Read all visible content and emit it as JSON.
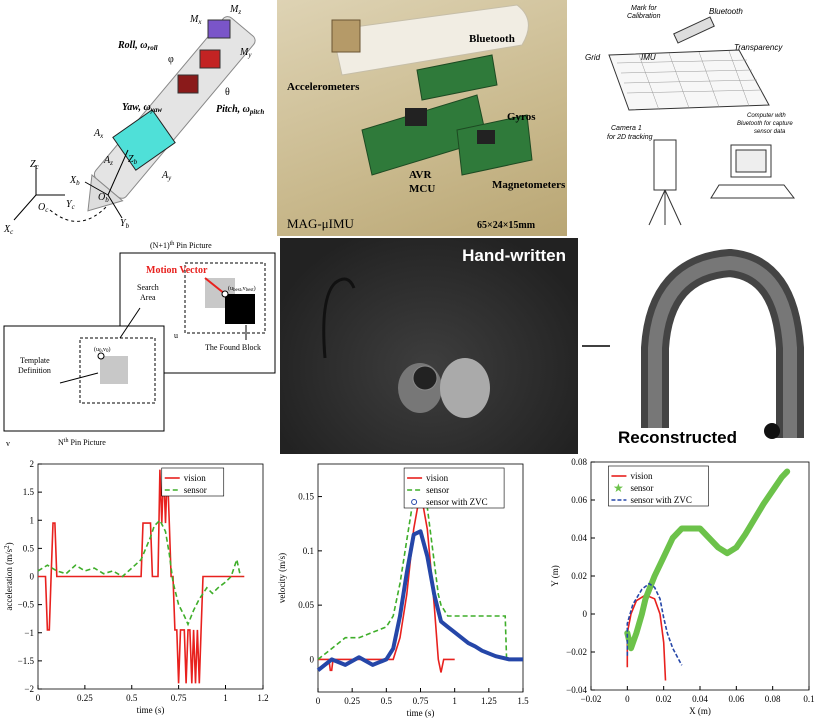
{
  "pen_diagram": {
    "labels": {
      "mz": "M",
      "mz_sub": "z",
      "roll": "Roll, ω",
      "roll_sub": "roll",
      "my": "M",
      "my_sub": "y",
      "mx": "M",
      "mx_sub": "x",
      "psi": "φ",
      "yaw": "Yaw, ω",
      "yaw_sub": "yaw",
      "theta": "θ",
      "pitch": "Pitch, ω",
      "pitch_sub": "pitch",
      "ax": "A",
      "ax_sub": "x",
      "az": "A",
      "az_sub": "z",
      "ay": "A",
      "ay_sub": "y",
      "zb": "Z",
      "zb_sub": "b",
      "xb": "X",
      "xb_sub": "b",
      "ob": "O",
      "ob_sub": "b",
      "yb": "Y",
      "yb_sub": "b",
      "zc": "Z",
      "zc_sub": "c",
      "oc": "O",
      "oc_sub": "c",
      "yc": "Y",
      "yc_sub": "c",
      "xc": "X",
      "xc_sub": "c"
    }
  },
  "hardware_photo": {
    "labels": {
      "bluetooth": "Bluetooth",
      "accelerometers": "Accelerometers",
      "gyros": "Gyros",
      "avr": "AVR",
      "mcu": "MCU",
      "magnetometers": "Magnetometers",
      "name": "MAG-μIMU",
      "size": "65×24×15mm"
    }
  },
  "setup_diagram": {
    "labels": {
      "mark": "Mark for",
      "mark2": "Calibration",
      "bluetooth": "Bluetooth",
      "grid": "Grid",
      "imu": "IMU",
      "transparency": "Transparency",
      "camera": "Camera 1",
      "camera2": "for 2D tracking",
      "computer": "Computer with",
      "computer2": "Bluetooth for capture",
      "computer3": "sensor data"
    }
  },
  "block_matching": {
    "labels": {
      "top_title": "(N+1)",
      "top_sup": "th",
      "top_rest": " Pin Picture",
      "motion_vector": "Motion Vector",
      "search_area": "Search",
      "search_area2": "Area",
      "u": "u",
      "template": "Template",
      "template2": "Definition",
      "found": "The Found Block",
      "v": "v",
      "bottom_title": "N",
      "bottom_sup": "th",
      "bottom_rest": " Pin Picture",
      "uv": "(u",
      "uv_rest": ",v",
      "uv_end": ")",
      "uv_sub": "0",
      "uv1": "(u",
      "uv1_mid": ",v",
      "uv1_end": ")",
      "uv1_sub": "best",
      "uv1_sub2": "best"
    }
  },
  "handwritten": {
    "label": "Hand-written"
  },
  "reconstructed": {
    "label": "Reconstructed"
  },
  "chart_data": [
    {
      "type": "line",
      "xlabel": "time (s)",
      "ylabel": "acceleration (m/s",
      "ylabel_sup": "2",
      "ylabel_end": ")",
      "xlim": [
        0,
        1.2
      ],
      "ylim": [
        -2,
        2
      ],
      "xticks": [
        "0",
        "0.25",
        "0.5",
        "0.75",
        "1",
        "1.2"
      ],
      "xtick_values": [
        0,
        0.25,
        0.5,
        0.75,
        1,
        1.2
      ],
      "yticks": [
        "−2",
        "−1.5",
        "−1",
        "−0.5",
        "0",
        "0.5",
        "1",
        "1.5",
        "2"
      ],
      "ytick_values": [
        -2,
        -1.5,
        -1,
        -0.5,
        0,
        0.5,
        1,
        1.5,
        2
      ],
      "legend": [
        "vision",
        "sensor"
      ],
      "series": [
        {
          "name": "vision",
          "color": "#e8211e",
          "dash": "none",
          "x": [
            0,
            0.04,
            0.05,
            0.06,
            0.07,
            0.08,
            0.09,
            0.1,
            0.11,
            0.55,
            0.56,
            0.6,
            0.61,
            0.64,
            0.65,
            0.66,
            0.67,
            0.68,
            0.69,
            0.7,
            0.71,
            0.72,
            0.73,
            0.74,
            0.75,
            0.76,
            0.77,
            0.78,
            0.79,
            0.8,
            0.81,
            0.82,
            0.83,
            0.84,
            0.85,
            0.86,
            0.87,
            0.88,
            0.89,
            0.9,
            0.91,
            0.95,
            0.96,
            1.1
          ],
          "y": [
            0,
            0,
            -0.95,
            -0.95,
            0,
            0.95,
            0.95,
            0,
            0,
            0,
            0.95,
            0.95,
            0,
            0,
            1.9,
            0.95,
            1.9,
            0.95,
            1.9,
            0.95,
            0,
            0,
            -0.95,
            -0.95,
            -1.9,
            -0.95,
            -0.95,
            -0.95,
            -1.9,
            -0.95,
            -0.95,
            -1.9,
            -0.95,
            -1.9,
            -0.95,
            -1.9,
            -0.95,
            0,
            0,
            0,
            0,
            0,
            0,
            0
          ]
        },
        {
          "name": "sensor",
          "color": "#3fae2a",
          "dash": "5,3",
          "x": [
            0,
            0.05,
            0.1,
            0.15,
            0.2,
            0.25,
            0.3,
            0.35,
            0.4,
            0.45,
            0.5,
            0.55,
            0.6,
            0.62,
            0.65,
            0.68,
            0.7,
            0.72,
            0.75,
            0.78,
            0.8,
            0.83,
            0.86,
            0.9,
            0.93,
            0.96,
            1.0,
            1.03,
            1.06,
            1.08
          ],
          "y": [
            0.1,
            0.2,
            0.1,
            0.05,
            0.2,
            0.1,
            0.15,
            0.05,
            0.1,
            0.0,
            0.15,
            0.3,
            0.7,
            0.9,
            1.0,
            0.8,
            0.4,
            -0.1,
            -0.5,
            -0.7,
            -0.85,
            -0.6,
            -0.4,
            -0.2,
            -0.3,
            -0.2,
            -0.1,
            0.0,
            0.3,
            0.0
          ]
        }
      ]
    },
    {
      "type": "line",
      "xlabel": "time (s)",
      "ylabel": "velocity (m/s)",
      "xlim": [
        0,
        1.5
      ],
      "ylim": [
        -0.03,
        0.18
      ],
      "xticks": [
        "0",
        "0.25",
        "0.5",
        "0.75",
        "1",
        "1.25",
        "1.5"
      ],
      "xtick_values": [
        0,
        0.25,
        0.5,
        0.75,
        1,
        1.25,
        1.5
      ],
      "yticks": [
        "0",
        "0.05",
        "0.1",
        "0.15"
      ],
      "ytick_values": [
        0,
        0.05,
        0.1,
        0.15
      ],
      "legend": [
        "vision",
        "sensor",
        "sensor with ZVC"
      ],
      "series": [
        {
          "name": "vision",
          "color": "#e8211e",
          "dash": "none",
          "x": [
            0,
            0.08,
            0.09,
            0.1,
            0.11,
            0.55,
            0.6,
            0.65,
            0.7,
            0.75,
            0.8,
            0.85,
            0.88,
            0.9,
            0.92,
            0.95,
            1.0
          ],
          "y": [
            0,
            0,
            -0.01,
            -0.01,
            0,
            0,
            0.02,
            0.06,
            0.12,
            0.155,
            0.12,
            0.05,
            0.0,
            -0.012,
            0.0,
            0,
            0
          ]
        },
        {
          "name": "sensor",
          "color": "#3fae2a",
          "dash": "5,3",
          "x": [
            0,
            0.1,
            0.2,
            0.3,
            0.4,
            0.5,
            0.55,
            0.6,
            0.65,
            0.7,
            0.75,
            0.8,
            0.85,
            0.88,
            0.9,
            0.95,
            1.05,
            1.07,
            1.37,
            1.38
          ],
          "y": [
            0,
            0.01,
            0.02,
            0.02,
            0.025,
            0.03,
            0.04,
            0.07,
            0.11,
            0.15,
            0.165,
            0.14,
            0.09,
            0.06,
            0.05,
            0.04,
            0.04,
            0.04,
            0.04,
            0
          ]
        },
        {
          "name": "sensor with ZVC",
          "color": "#2546a8",
          "dash": "none",
          "x": [
            0,
            0.1,
            0.2,
            0.3,
            0.4,
            0.5,
            0.55,
            0.6,
            0.65,
            0.7,
            0.75,
            0.8,
            0.85,
            0.9,
            0.95,
            1.0,
            1.05,
            1.1,
            1.15,
            1.2,
            1.3,
            1.4,
            1.5
          ],
          "y": [
            -0.01,
            0,
            -0.005,
            0.002,
            -0.005,
            0,
            0.01,
            0.04,
            0.08,
            0.115,
            0.118,
            0.095,
            0.06,
            0.035,
            0.03,
            0.025,
            0.02,
            0.015,
            0.012,
            0.008,
            0.003,
            0.0,
            0.0
          ]
        }
      ]
    },
    {
      "type": "line",
      "xlabel": "X (m)",
      "ylabel": "Y (m)",
      "xlim": [
        -0.02,
        0.1
      ],
      "ylim": [
        -0.04,
        0.08
      ],
      "xticks": [
        "−0.02",
        "0",
        "0.02",
        "0.04",
        "0.06",
        "0.08",
        "0.1"
      ],
      "xtick_values": [
        -0.02,
        0,
        0.02,
        0.04,
        0.06,
        0.08,
        0.1
      ],
      "yticks": [
        "−0.04",
        "−0.02",
        "0",
        "0.02",
        "0.04",
        "0.06",
        "0.08"
      ],
      "ytick_values": [
        -0.04,
        -0.02,
        0,
        0.02,
        0.04,
        0.06,
        0.08
      ],
      "legend": [
        "vision",
        "sensor",
        "sensor with ZVC"
      ],
      "series": [
        {
          "name": "vision",
          "color": "#e8211e",
          "dash": "none",
          "x": [
            0,
            0.0,
            0.002,
            0.005,
            0.01,
            0.015,
            0.018,
            0.02,
            0.021
          ],
          "y": [
            -0.028,
            -0.01,
            0.0,
            0.007,
            0.01,
            0.008,
            0.0,
            -0.015,
            -0.035
          ]
        },
        {
          "name": "sensor",
          "color": "#6cc24a",
          "dash": "none",
          "x": [
            0,
            0.002,
            0.005,
            0.008,
            0.01,
            0.015,
            0.02,
            0.025,
            0.03,
            0.04,
            0.05,
            0.055,
            0.06,
            0.065,
            0.07,
            0.075,
            0.08,
            0.085,
            0.088
          ],
          "y": [
            -0.01,
            -0.018,
            -0.01,
            0.0,
            0.008,
            0.02,
            0.03,
            0.04,
            0.045,
            0.045,
            0.035,
            0.032,
            0.035,
            0.042,
            0.05,
            0.058,
            0.065,
            0.072,
            0.075
          ]
        },
        {
          "name": "sensor with ZVC",
          "color": "#2546a8",
          "dash": "4,2",
          "x": [
            0,
            0.0,
            0.003,
            0.008,
            0.012,
            0.015,
            0.018,
            0.02,
            0.022,
            0.025,
            0.03
          ],
          "y": [
            -0.022,
            -0.005,
            0.005,
            0.013,
            0.016,
            0.014,
            0.008,
            -0.002,
            -0.01,
            -0.018,
            -0.027
          ]
        }
      ]
    }
  ]
}
